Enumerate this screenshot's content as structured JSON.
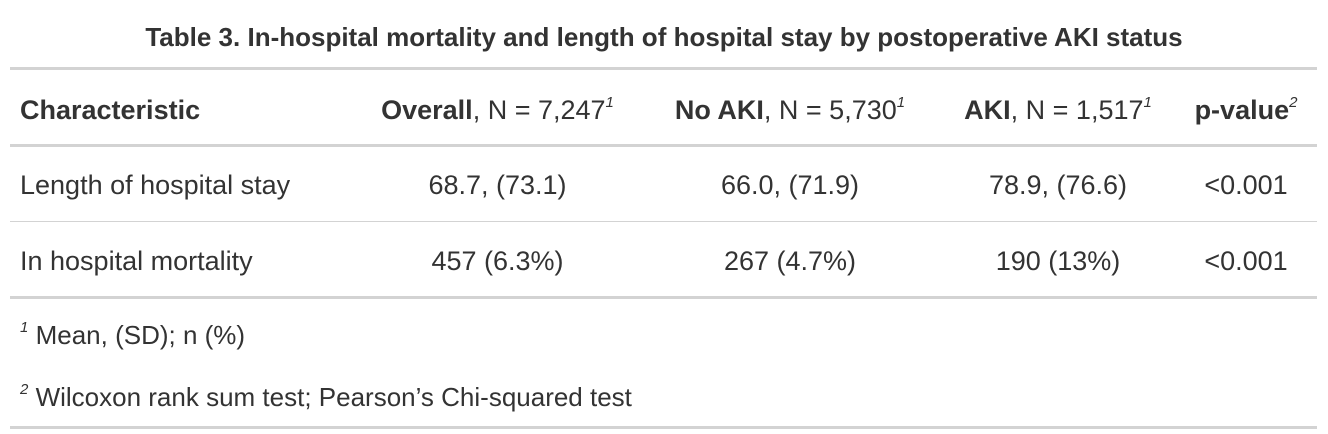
{
  "title": "Table 3. In-hospital mortality and length of hospital stay by postoperative AKI status",
  "table": {
    "headers": [
      {
        "label": "Characteristic"
      },
      {
        "label": "Overall",
        "n": ", N = 7,247",
        "note": "1"
      },
      {
        "label": "No AKI",
        "n": ", N = 5,730",
        "note": "1"
      },
      {
        "label": "AKI",
        "n": ", N = 1,517",
        "note": "1"
      },
      {
        "label": "p-value",
        "note": "2"
      }
    ],
    "rows": [
      [
        "Length of hospital stay",
        "68.7, (73.1)",
        "66.0, (71.9)",
        "78.9, (76.6)",
        "<0.001"
      ],
      [
        "In hospital mortality",
        "457 (6.3%)",
        "267 (4.7%)",
        "190 (13%)",
        "<0.001"
      ]
    ]
  },
  "footnotes": [
    {
      "mark": "1",
      "text": "Mean, (SD); n (%)"
    },
    {
      "mark": "2",
      "text": "Wilcoxon rank sum test; Pearson’s Chi-squared test"
    }
  ]
}
